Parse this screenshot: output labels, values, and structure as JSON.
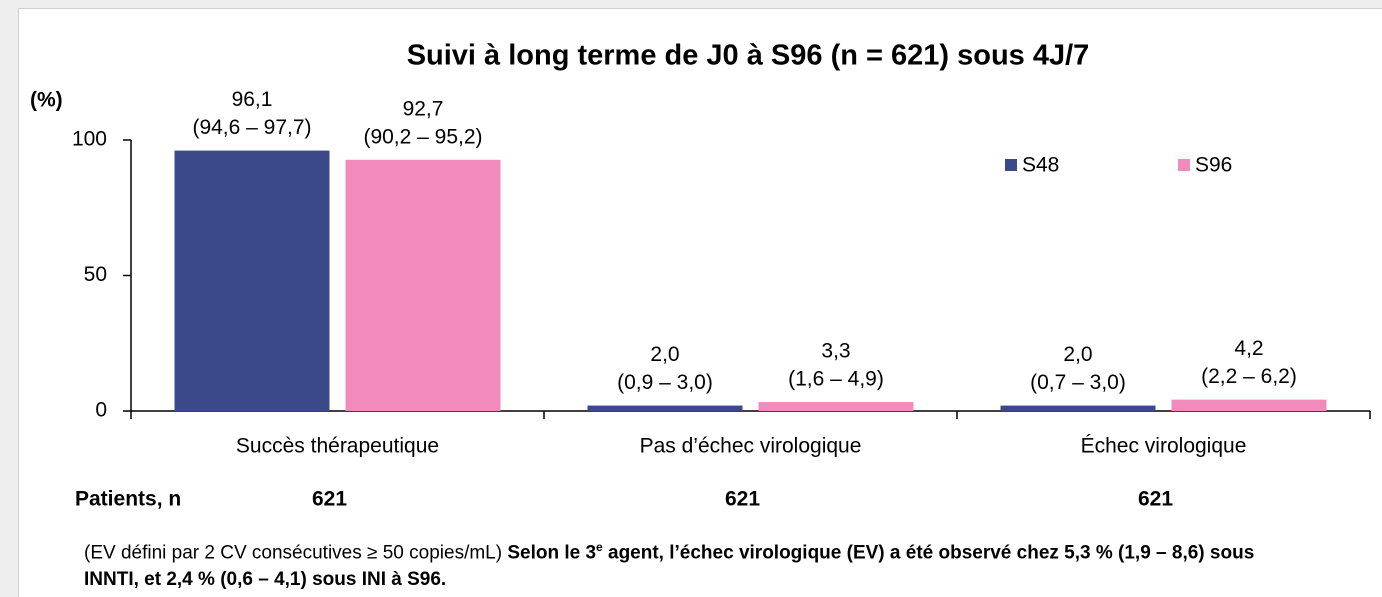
{
  "chart_data": {
    "type": "bar",
    "title": "Suivi à long terme de J0 à S96 (n = 621) sous 4J/7",
    "y_label": "(%)",
    "categories": [
      "Succès thérapeutique",
      "Pas d’échec virologique",
      "Échec virologique"
    ],
    "series": [
      {
        "name": "S48",
        "color": "#3b4889",
        "values": [
          96.1,
          2.0,
          2.0
        ],
        "value_labels": [
          "96,1",
          "2,0",
          "2,0"
        ],
        "intervals": [
          "(94,6 – 97,7)",
          "(0,9 – 3,0)",
          "(0,7 – 3,0)"
        ]
      },
      {
        "name": "S96",
        "color": "#f28bbb",
        "values": [
          92.7,
          3.3,
          4.2
        ],
        "value_labels": [
          "92,7",
          "3,3",
          "4,2"
        ],
        "intervals": [
          "(90,2 – 95,2)",
          "(1,6 – 4,9)",
          "(2,2 – 6,2)"
        ]
      }
    ],
    "ylim": [
      0,
      100
    ],
    "yticks": [
      0,
      50,
      100
    ],
    "patients": {
      "label": "Patients, n",
      "values": [
        621,
        621,
        621
      ]
    },
    "note": [
      "(EV défini par 2 CV consécutives ≥ 50 copies/mL) ",
      "Selon le 3",
      "e",
      " agent, l’échec virologique (EV) a été observé chez  5,3 % (1,9 – 8,6) sous INNTI, et 2,4 % (0,6 – 4,1) sous INI à S96."
    ]
  }
}
